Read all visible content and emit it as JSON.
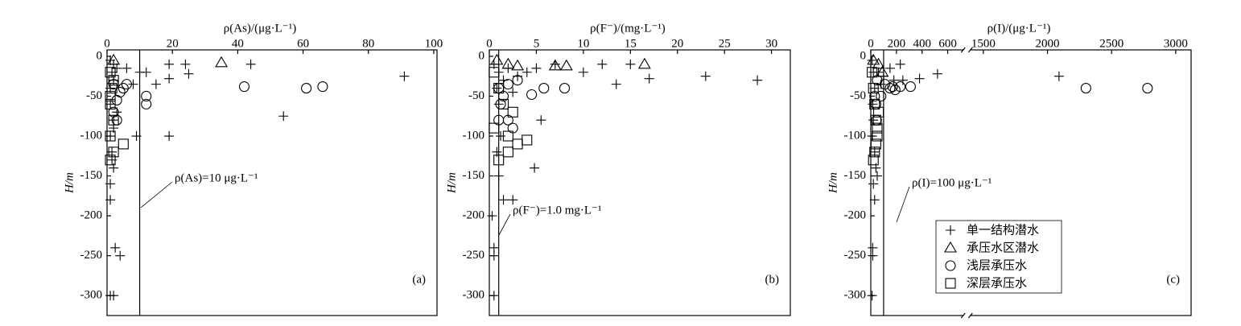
{
  "chart_data": [
    {
      "type": "scatter",
      "xlabel": "ρ(As)/(μg·L⁻¹)",
      "ylabel": "H/m",
      "xlim": [
        0,
        101
      ],
      "xticks": [
        0,
        20,
        40,
        60,
        80,
        100
      ],
      "ylim": [
        -325,
        8
      ],
      "yticks": [
        0,
        -50,
        -100,
        -150,
        -200,
        -250,
        -300
      ],
      "threshold": {
        "value": 10,
        "label": "ρ(As)=10 μg·L⁻¹"
      },
      "panel_label": "(a)",
      "series": [
        {
          "name": "单一结构潜水",
          "marker": "plus",
          "color": "#000000",
          "x": [
            1,
            2,
            1.5,
            2,
            1,
            3,
            1,
            2,
            1,
            1.5,
            2,
            1,
            1,
            2.5,
            4,
            1,
            2,
            6,
            8,
            10,
            12,
            15,
            19,
            19,
            19,
            24,
            25,
            9,
            44,
            54,
            91,
            3,
            2,
            1.5
          ],
          "values": [
            -5,
            -10,
            -20,
            -30,
            -40,
            -15,
            -60,
            -80,
            -100,
            -120,
            -140,
            -160,
            -180,
            -240,
            -250,
            -300,
            -300,
            -15,
            -35,
            -20,
            -20,
            -35,
            -10,
            -28,
            -100,
            -10,
            -22,
            -100,
            -10,
            -75,
            -25,
            -70,
            -90,
            -130
          ]
        },
        {
          "name": "承压水区潜水",
          "marker": "triangle",
          "color": "#000000",
          "x": [
            2,
            35
          ],
          "values": [
            -5,
            -8
          ]
        },
        {
          "name": "浅层承压水",
          "marker": "circle",
          "color": "#000000",
          "x": [
            2,
            4,
            5,
            6,
            3,
            12,
            12,
            42,
            61,
            66,
            2,
            3
          ],
          "values": [
            -35,
            -45,
            -40,
            -35,
            -55,
            -50,
            -60,
            -38,
            -40,
            -38,
            -70,
            -80
          ]
        },
        {
          "name": "深层承压水",
          "marker": "square",
          "color": "#000000",
          "x": [
            1,
            1.5,
            1,
            2,
            1,
            2,
            1,
            5,
            2,
            1
          ],
          "values": [
            -20,
            -40,
            -60,
            -80,
            -100,
            -120,
            -130,
            -110,
            -30,
            -50
          ]
        }
      ]
    },
    {
      "type": "scatter",
      "xlabel": "ρ(F⁻)/(mg·L⁻¹)",
      "ylabel": "H/m",
      "xlim": [
        0,
        32
      ],
      "xticks": [
        0,
        5,
        10,
        15,
        20,
        25,
        30
      ],
      "ylim": [
        -325,
        8
      ],
      "yticks": [
        0,
        -50,
        -100,
        -150,
        -200,
        -250,
        -300
      ],
      "threshold": {
        "value": 1.0,
        "label": "ρ(F⁻)=1.0 mg·L⁻¹"
      },
      "panel_label": "(b)",
      "series": [
        {
          "name": "单一结构潜水",
          "marker": "plus",
          "color": "#000000",
          "x": [
            0.5,
            1,
            0.8,
            1.5,
            2,
            3,
            4,
            5,
            7,
            10,
            12,
            13.5,
            15,
            17,
            23,
            28.5,
            5.5,
            4.8,
            1,
            1.5,
            2.5,
            0.5,
            0.5,
            0.5,
            1.2,
            0.8,
            1,
            2.5,
            0.3
          ],
          "values": [
            -10,
            -20,
            -40,
            -30,
            -15,
            -25,
            -20,
            -15,
            -10,
            -20,
            -10,
            -35,
            -10,
            -28,
            -25,
            -30,
            -80,
            -140,
            -150,
            -180,
            -180,
            -240,
            -250,
            -300,
            -100,
            -120,
            -60,
            -45,
            -200
          ]
        },
        {
          "name": "承压水区潜水",
          "marker": "triangle",
          "color": "#000000",
          "x": [
            0.8,
            2,
            3,
            7,
            8.2,
            16.5
          ],
          "values": [
            -5,
            -10,
            -12,
            -12,
            -12,
            -10
          ]
        },
        {
          "name": "浅层承压水",
          "marker": "circle",
          "color": "#000000",
          "x": [
            1,
            1.5,
            2,
            3,
            4.5,
            5.8,
            8,
            1,
            2,
            2.5,
            1.2
          ],
          "values": [
            -40,
            -50,
            -35,
            -30,
            -48,
            -40,
            -40,
            -80,
            -80,
            -90,
            -60
          ]
        },
        {
          "name": "深层承压水",
          "marker": "square",
          "color": "#000000",
          "x": [
            0.5,
            1,
            1.5,
            2,
            3,
            4,
            2,
            1,
            0.5,
            2.5
          ],
          "values": [
            -20,
            -40,
            -60,
            -100,
            -110,
            -105,
            -120,
            -130,
            -90,
            -70
          ]
        }
      ]
    },
    {
      "type": "scatter",
      "xlabel": "ρ(I)/(μg·L⁻¹)",
      "ylabel": "H/m",
      "xlim": [
        0,
        3120
      ],
      "xbreak": [
        730,
        1390
      ],
      "xticks": [
        0,
        200,
        400,
        600,
        1500,
        2000,
        2500,
        3000
      ],
      "ylim": [
        -325,
        8
      ],
      "yticks": [
        0,
        -50,
        -100,
        -150,
        -200,
        -250,
        -300
      ],
      "threshold": {
        "value": 100,
        "label": "ρ(I)=100 μg·L⁻¹"
      },
      "panel_label": "(c)",
      "legend": "lower center",
      "series": [
        {
          "name": "单一结构潜水",
          "marker": "plus",
          "color": "#000000",
          "x": [
            10,
            20,
            30,
            15,
            20,
            10,
            30,
            40,
            50,
            20,
            30,
            15,
            15,
            10,
            100,
            150,
            180,
            230,
            250,
            380,
            520,
            2090,
            60,
            80
          ],
          "values": [
            -5,
            -20,
            -40,
            -60,
            -80,
            -100,
            -120,
            -140,
            -150,
            -160,
            -180,
            -240,
            -250,
            -300,
            -25,
            -15,
            -30,
            -10,
            -30,
            -28,
            -22,
            -25,
            -20,
            -35
          ]
        },
        {
          "name": "承压水区潜水",
          "marker": "triangle",
          "color": "#000000",
          "x": [
            20,
            60,
            90
          ],
          "values": [
            -5,
            -10,
            -20
          ]
        },
        {
          "name": "浅层承压水",
          "marker": "circle",
          "color": "#000000",
          "x": [
            50,
            110,
            150,
            170,
            190,
            230,
            310,
            2300,
            2780,
            30,
            40,
            45,
            80
          ],
          "values": [
            -30,
            -35,
            -40,
            -38,
            -42,
            -38,
            -38,
            -40,
            -40,
            -50,
            -60,
            -80,
            -50
          ]
        },
        {
          "name": "深层承压水",
          "marker": "square",
          "color": "#000000",
          "x": [
            10,
            20,
            30,
            40,
            50,
            30,
            20,
            40,
            50,
            60
          ],
          "values": [
            -20,
            -40,
            -60,
            -80,
            -100,
            -120,
            -130,
            -110,
            -90,
            -70
          ]
        }
      ]
    }
  ]
}
